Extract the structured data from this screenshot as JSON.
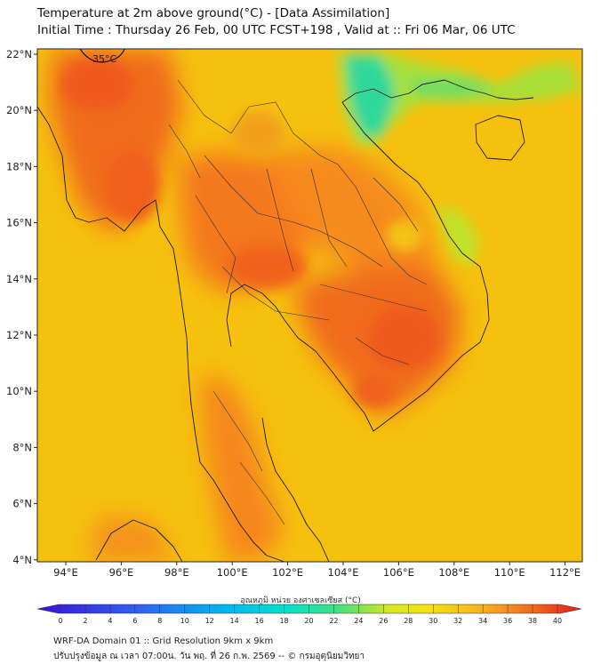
{
  "title_line1": "Temperature at 2m above ground(°C) - [Data Assimilation]",
  "title_line2": "Initial Time : Thursday 26 Feb, 00 UTC FCST+198 , Valid at :: Fri 06 Mar, 06 UTC",
  "map": {
    "lon_ticks": [
      "94°E",
      "96°E",
      "98°E",
      "100°E",
      "102°E",
      "104°E",
      "106°E",
      "108°E",
      "110°E",
      "112°E"
    ],
    "lat_ticks": [
      "22°N",
      "20°N",
      "18°N",
      "16°N",
      "14°N",
      "12°N",
      "10°N",
      "8°N",
      "6°N",
      "4°N"
    ],
    "contour_label": "35°C"
  },
  "colorbar": {
    "label": "อุณหภูมิ หน่วย องศาเซลเซียส (°C)",
    "ticks": [
      "0",
      "2",
      "4",
      "6",
      "8",
      "10",
      "12",
      "14",
      "16",
      "18",
      "20",
      "22",
      "24",
      "26",
      "28",
      "30",
      "32",
      "34",
      "36",
      "38",
      "40"
    ],
    "colors": {
      "cold": "#3a10d8",
      "cyan": "#00d8ee",
      "green": "#2ad6a0",
      "yellow": "#f6e20c",
      "orange": "#f7a02a",
      "red": "#e8201a"
    }
  },
  "footer_line1": "WRF-DA Domain 01 :: Grid Resolution 9km x 9km",
  "footer_line2": "ปรับปรุงข้อมูล ณ เวลา 07:00น. วัน พฤ. ที่ 26 ก.พ. 2569 -- © กรมอุตุนิยมวิทยา"
}
